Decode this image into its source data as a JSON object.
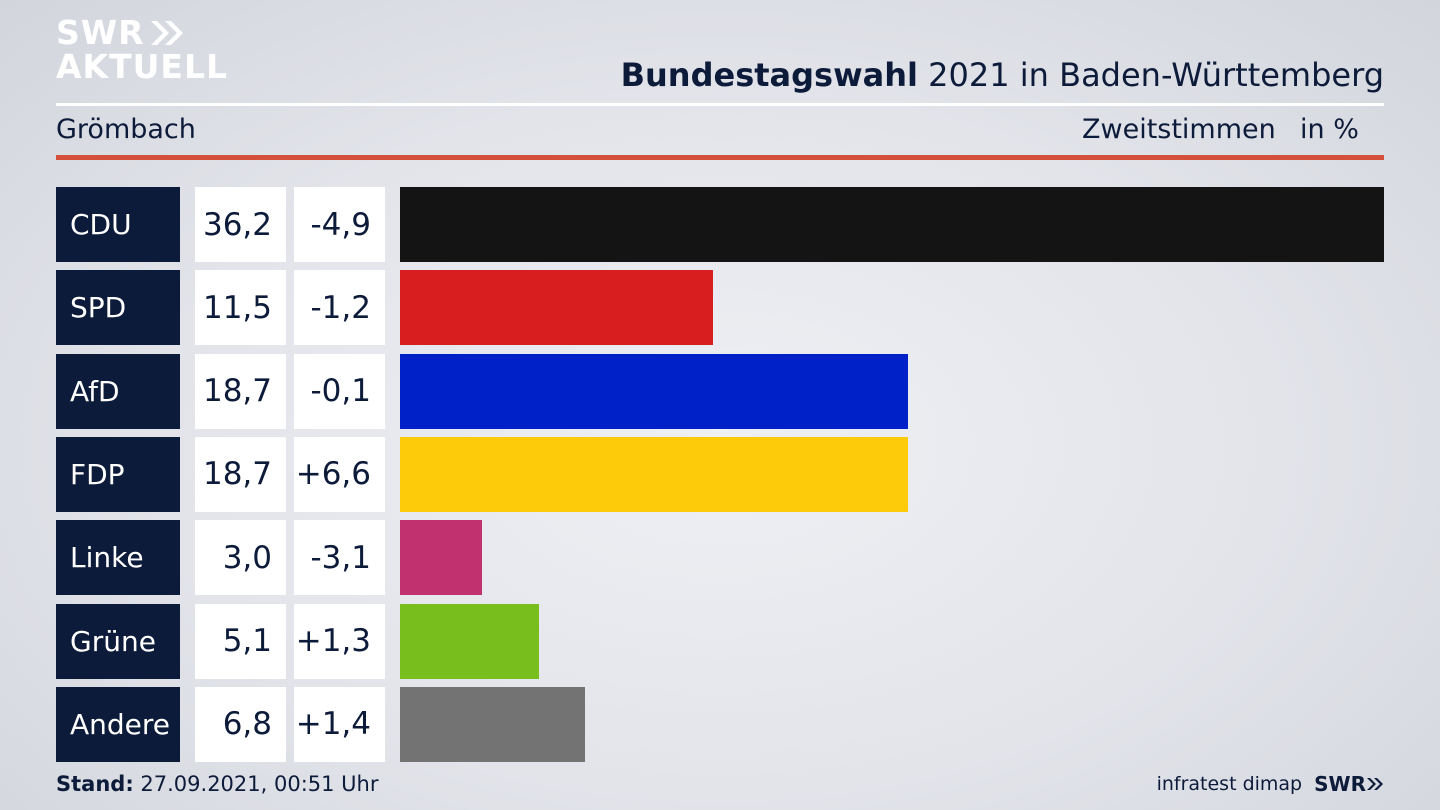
{
  "logo": {
    "line1": "SWR",
    "line2": "AKTUELL"
  },
  "header": {
    "title_bold": "Bundestagswahl",
    "title_rest": " 2021 in Baden-Württemberg",
    "region": "Grömbach",
    "metric": "Zweitstimmen",
    "unit": "in %"
  },
  "footer": {
    "stand_label": "Stand:",
    "stand_value": " 27.09.2021, 00:51 Uhr",
    "source": "infratest dimap",
    "broadcaster": "SWR"
  },
  "colors": {
    "navy": "#0d1b3a",
    "rule_red": "#d5503b"
  },
  "chart_data": {
    "type": "bar",
    "orientation": "horizontal",
    "title": "Bundestagswahl 2021 in Baden-Württemberg",
    "subtitle": "Grömbach",
    "metric": "Zweitstimmen",
    "unit": "in %",
    "categories": [
      "CDU",
      "SPD",
      "AfD",
      "FDP",
      "Linke",
      "Grüne",
      "Andere"
    ],
    "values": [
      36.2,
      11.5,
      18.7,
      18.7,
      3.0,
      5.1,
      6.8
    ],
    "value_labels": [
      "36,2",
      "11,5",
      "18,7",
      "18,7",
      "3,0",
      "5,1",
      "6,8"
    ],
    "changes": [
      -4.9,
      -1.2,
      -0.1,
      6.6,
      -3.1,
      1.3,
      1.4
    ],
    "change_labels": [
      "-4,9",
      "-1,2",
      "-0,1",
      "+6,6",
      "-3,1",
      "+1,3",
      "+1,4"
    ],
    "colors": [
      "#141414",
      "#d81e1e",
      "#0021c8",
      "#fecb0a",
      "#c1306f",
      "#78bf1e",
      "#737373"
    ],
    "xlim": [
      0,
      36.2
    ]
  }
}
